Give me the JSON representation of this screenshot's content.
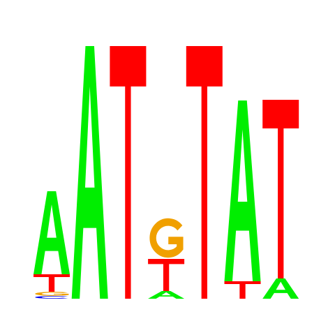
{
  "colors": {
    "A": "#00ee00",
    "C": "#0000ee",
    "G": "#f0a000",
    "T": "#ff0000"
  },
  "logo": {
    "columns": [
      {
        "letters": [
          {
            "base": "C",
            "height": 0.08
          },
          {
            "base": "G",
            "height": 0.12
          },
          {
            "base": "T",
            "height": 0.5
          },
          {
            "base": "A",
            "height": 2.38
          }
        ]
      },
      {
        "letters": [
          {
            "base": "A",
            "height": 7.24
          }
        ]
      },
      {
        "letters": [
          {
            "base": "T",
            "height": 7.24
          }
        ]
      },
      {
        "letters": [
          {
            "base": "A",
            "height": 0.22
          },
          {
            "base": "T",
            "height": 0.92
          },
          {
            "base": "G",
            "height": 1.2
          }
        ]
      },
      {
        "letters": [
          {
            "base": "T",
            "height": 7.24
          }
        ]
      },
      {
        "letters": [
          {
            "base": "T",
            "height": 0.5
          },
          {
            "base": "A",
            "height": 5.18
          }
        ]
      },
      {
        "letters": [
          {
            "base": "A",
            "height": 0.58
          },
          {
            "base": "T",
            "height": 5.12
          }
        ]
      }
    ]
  }
}
